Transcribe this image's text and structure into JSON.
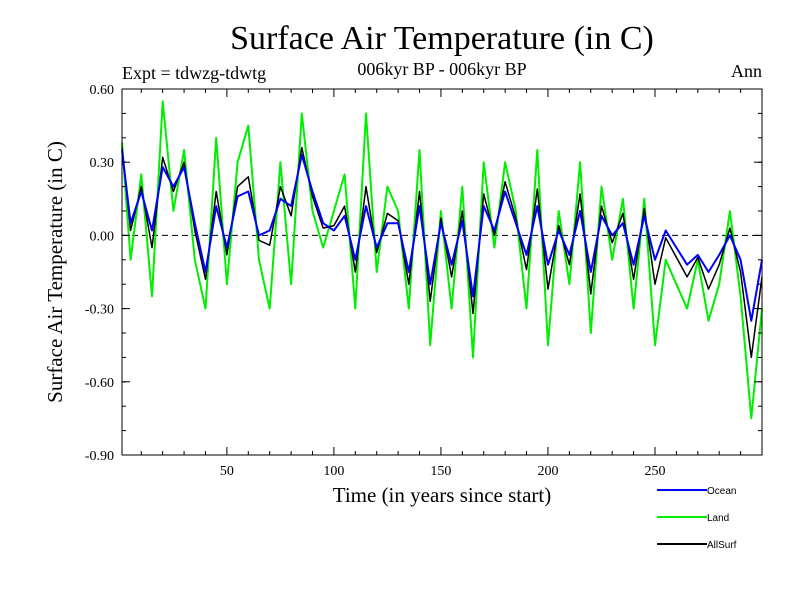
{
  "chart_data": {
    "type": "line",
    "title": "Surface Air Temperature (in C)",
    "subtitle": "006kyr BP - 006kyr BP",
    "annotation_left": "Expt = tdwzg-tdwtg",
    "annotation_right": "Ann",
    "xlabel": "Time (in years since start)",
    "ylabel": "Surface Air Temperature (in C)",
    "xlim": [
      1,
      300
    ],
    "ylim": [
      -0.9,
      0.6
    ],
    "x_ticks": [
      50,
      100,
      150,
      200,
      250
    ],
    "y_ticks": [
      0.6,
      0.3,
      0.0,
      -0.3,
      -0.6,
      -0.9
    ],
    "y_tick_labels": [
      "0.60",
      "0.30",
      "0.00",
      "-0.30",
      "-0.60",
      "-0.90"
    ],
    "zero_line": "dashed",
    "grid": false,
    "legend_position": "bottom-right",
    "x": [
      1,
      5,
      10,
      15,
      20,
      25,
      30,
      35,
      40,
      45,
      50,
      55,
      60,
      65,
      70,
      75,
      80,
      85,
      90,
      95,
      100,
      105,
      110,
      115,
      120,
      125,
      130,
      135,
      140,
      145,
      150,
      155,
      160,
      165,
      170,
      175,
      180,
      185,
      190,
      195,
      200,
      205,
      210,
      215,
      220,
      225,
      230,
      235,
      240,
      245,
      250,
      255,
      260,
      265,
      270,
      275,
      280,
      285,
      290,
      295,
      300
    ],
    "series": [
      {
        "name": "Ocean",
        "color": "#0000ff",
        "values": [
          0.35,
          0.05,
          0.18,
          0.02,
          0.28,
          0.2,
          0.28,
          0.05,
          -0.15,
          0.12,
          -0.05,
          0.16,
          0.18,
          0.0,
          0.02,
          0.15,
          0.12,
          0.33,
          0.18,
          0.05,
          0.02,
          0.08,
          -0.1,
          0.12,
          -0.05,
          0.05,
          0.05,
          -0.15,
          0.12,
          -0.2,
          0.05,
          -0.12,
          0.06,
          -0.25,
          0.12,
          0.02,
          0.18,
          0.05,
          -0.08,
          0.12,
          -0.12,
          0.02,
          -0.08,
          0.1,
          -0.15,
          0.08,
          0.0,
          0.05,
          -0.12,
          0.08,
          -0.1,
          0.02,
          -0.05,
          -0.12,
          -0.08,
          -0.15,
          -0.08,
          0.0,
          -0.1,
          -0.35,
          -0.1
        ]
      },
      {
        "name": "Land",
        "color": "#00ee00",
        "values": [
          0.38,
          -0.1,
          0.25,
          -0.25,
          0.55,
          0.1,
          0.35,
          -0.1,
          -0.3,
          0.4,
          -0.2,
          0.3,
          0.45,
          -0.1,
          -0.3,
          0.3,
          -0.2,
          0.5,
          0.1,
          -0.05,
          0.1,
          0.25,
          -0.3,
          0.5,
          -0.15,
          0.2,
          0.1,
          -0.3,
          0.35,
          -0.45,
          0.1,
          -0.3,
          0.2,
          -0.5,
          0.3,
          -0.05,
          0.3,
          0.1,
          -0.3,
          0.35,
          -0.45,
          0.1,
          -0.2,
          0.3,
          -0.4,
          0.2,
          -0.1,
          0.15,
          -0.3,
          0.15,
          -0.45,
          -0.1,
          -0.2,
          -0.3,
          -0.1,
          -0.35,
          -0.2,
          0.1,
          -0.25,
          -0.75,
          -0.3
        ]
      },
      {
        "name": "AllSurf",
        "color": "#000000",
        "values": [
          0.36,
          0.02,
          0.2,
          -0.05,
          0.32,
          0.18,
          0.3,
          0.02,
          -0.18,
          0.18,
          -0.08,
          0.2,
          0.24,
          -0.02,
          -0.04,
          0.2,
          0.08,
          0.36,
          0.16,
          0.03,
          0.04,
          0.12,
          -0.15,
          0.2,
          -0.07,
          0.09,
          0.06,
          -0.2,
          0.18,
          -0.27,
          0.07,
          -0.17,
          0.1,
          -0.32,
          0.17,
          0.0,
          0.22,
          0.07,
          -0.14,
          0.19,
          -0.22,
          0.04,
          -0.12,
          0.17,
          -0.24,
          0.12,
          -0.03,
          0.09,
          -0.18,
          0.11,
          -0.2,
          -0.01,
          -0.09,
          -0.17,
          -0.09,
          -0.22,
          -0.12,
          0.03,
          -0.15,
          -0.5,
          -0.17
        ]
      }
    ]
  }
}
